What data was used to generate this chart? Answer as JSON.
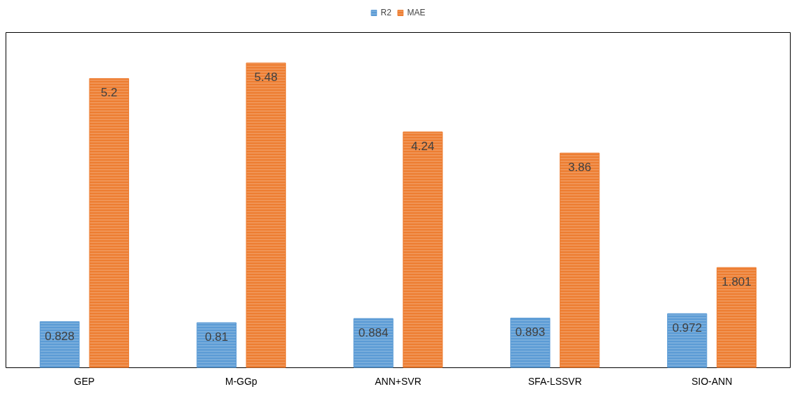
{
  "chart_data": {
    "type": "bar",
    "categories": [
      "GEP",
      "M-GGp",
      "ANN+SVR",
      "SFA-LSSVR",
      "SIO-ANN"
    ],
    "series": [
      {
        "name": "R2",
        "color": "#5b9bd5",
        "values": [
          0.828,
          0.81,
          0.884,
          0.893,
          0.972
        ]
      },
      {
        "name": "MAE",
        "color": "#ed7d31",
        "values": [
          5.2,
          5.48,
          4.24,
          3.86,
          1.801
        ]
      }
    ],
    "data_labels": true,
    "legend": "top",
    "grid": false
  }
}
